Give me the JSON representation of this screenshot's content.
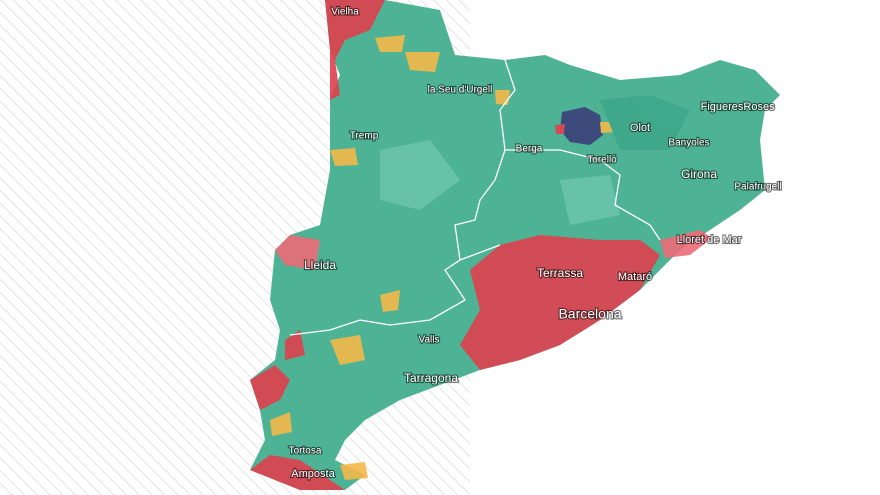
{
  "map": {
    "labels": [
      "Vielha",
      "la Seu d'Urgell",
      "Tremp",
      "Berga",
      "Olot",
      "Torelló",
      "Figueres",
      "Roses",
      "Banyoles",
      "Girona",
      "Palafrugell",
      "Lloret de Mar",
      "Lleida",
      "Terrassa",
      "Mataró",
      "Barcelona",
      "Valls",
      "Tarragona",
      "Tortosa",
      "Amposta"
    ]
  }
}
